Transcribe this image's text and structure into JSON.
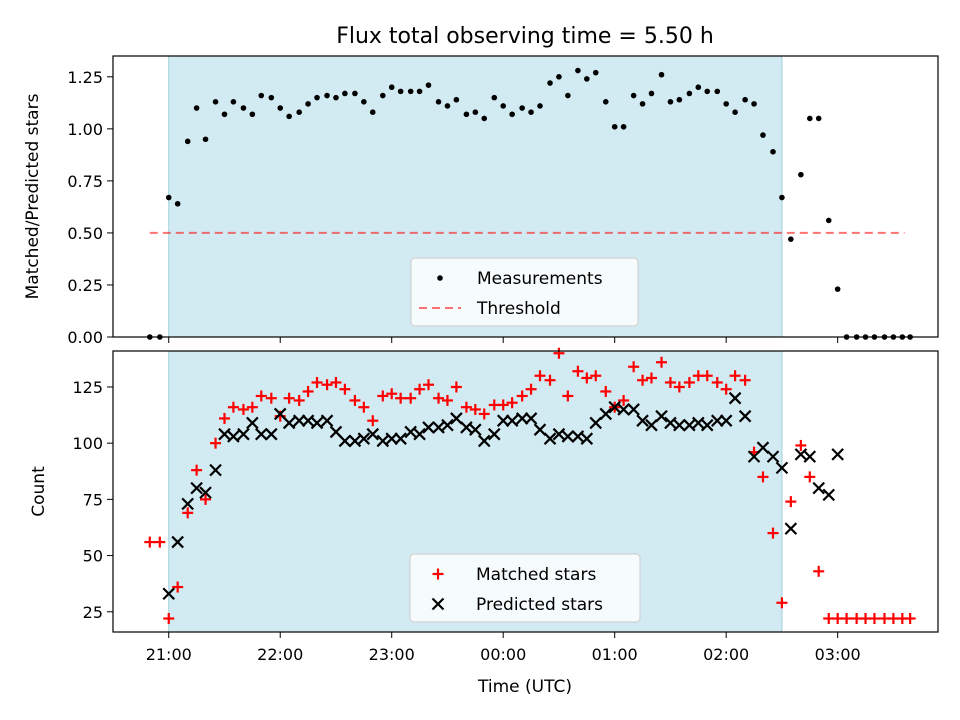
{
  "title": "Flux total observing time = 5.50 h",
  "colors": {
    "observing_span": "#add8e6",
    "measurement": "#000000",
    "threshold": "#ff0000",
    "matched": "#ff0000",
    "predicted": "#000000"
  },
  "chart_data": [
    {
      "type": "scatter",
      "ylabel": "Matched/Predicted stars",
      "xlabel": "",
      "xlim": [
        -0.5,
        6.9
      ],
      "ylim": [
        0.0,
        1.35
      ],
      "yticks": [
        0.0,
        0.25,
        0.5,
        0.75,
        1.0,
        1.25
      ],
      "ytick_labels": [
        "0.00",
        "0.25",
        "0.50",
        "0.75",
        "1.00",
        "1.25"
      ],
      "observing_span": [
        0.0,
        5.5
      ],
      "legend": {
        "placement": "lower-center",
        "entries": [
          "Measurements",
          "Threshold"
        ]
      },
      "threshold": {
        "name": "Threshold",
        "value": 0.5,
        "x_range": [
          -0.17,
          6.6
        ]
      },
      "series": [
        {
          "name": "Measurements",
          "x": [
            -0.17,
            -0.08,
            0.0,
            0.08,
            0.17,
            0.25,
            0.33,
            0.42,
            0.5,
            0.58,
            0.67,
            0.75,
            0.83,
            0.92,
            1.0,
            1.08,
            1.17,
            1.25,
            1.33,
            1.42,
            1.5,
            1.58,
            1.67,
            1.75,
            1.83,
            1.92,
            2.0,
            2.08,
            2.17,
            2.25,
            2.33,
            2.42,
            2.5,
            2.58,
            2.67,
            2.75,
            2.83,
            2.92,
            3.0,
            3.08,
            3.17,
            3.25,
            3.33,
            3.42,
            3.5,
            3.58,
            3.67,
            3.75,
            3.83,
            3.92,
            4.0,
            4.08,
            4.17,
            4.25,
            4.33,
            4.42,
            4.5,
            4.58,
            4.67,
            4.75,
            4.83,
            4.92,
            5.0,
            5.08,
            5.17,
            5.25,
            5.33,
            5.42,
            5.5,
            5.58,
            5.67,
            5.75,
            5.83,
            5.92,
            6.0,
            6.08,
            6.17,
            6.25,
            6.33,
            6.42,
            6.5,
            6.58,
            6.65
          ],
          "y": [
            0.0,
            0.0,
            0.67,
            0.64,
            0.94,
            1.1,
            0.95,
            1.13,
            1.07,
            1.13,
            1.1,
            1.07,
            1.16,
            1.15,
            1.1,
            1.06,
            1.08,
            1.12,
            1.15,
            1.16,
            1.15,
            1.17,
            1.17,
            1.13,
            1.08,
            1.16,
            1.2,
            1.18,
            1.18,
            1.18,
            1.21,
            1.13,
            1.11,
            1.14,
            1.07,
            1.08,
            1.05,
            1.15,
            1.11,
            1.07,
            1.1,
            1.08,
            1.11,
            1.22,
            1.25,
            1.16,
            1.28,
            1.24,
            1.27,
            1.13,
            1.01,
            1.01,
            1.16,
            1.12,
            1.17,
            1.26,
            1.13,
            1.14,
            1.17,
            1.2,
            1.18,
            1.18,
            1.12,
            1.08,
            1.14,
            1.12,
            0.97,
            0.89,
            0.67,
            0.47,
            0.78,
            1.05,
            1.05,
            0.56,
            0.23,
            0.0,
            0.0,
            0.0,
            0.0,
            0.0,
            0.0,
            0.0,
            0.0
          ]
        }
      ]
    },
    {
      "type": "scatter",
      "ylabel": "Count",
      "xlabel": "Time (UTC)",
      "xlim": [
        -0.5,
        6.9
      ],
      "ylim": [
        16,
        141
      ],
      "yticks": [
        25,
        50,
        75,
        100,
        125
      ],
      "ytick_labels": [
        "25",
        "50",
        "75",
        "100",
        "125"
      ],
      "xticks": [
        0,
        1,
        2,
        3,
        4,
        5,
        6
      ],
      "xtick_labels": [
        "21:00",
        "22:00",
        "23:00",
        "00:00",
        "01:00",
        "02:00",
        "03:00"
      ],
      "observing_span": [
        0.0,
        5.5
      ],
      "legend": {
        "placement": "lower-center",
        "entries": [
          "Matched stars",
          "Predicted stars"
        ]
      },
      "series": [
        {
          "name": "Matched stars",
          "marker": "plus",
          "x": [
            -0.17,
            -0.08,
            0.0,
            0.08,
            0.17,
            0.25,
            0.33,
            0.42,
            0.5,
            0.58,
            0.67,
            0.75,
            0.83,
            0.92,
            1.0,
            1.08,
            1.17,
            1.25,
            1.33,
            1.42,
            1.5,
            1.58,
            1.67,
            1.75,
            1.83,
            1.92,
            2.0,
            2.08,
            2.17,
            2.25,
            2.33,
            2.42,
            2.5,
            2.58,
            2.67,
            2.75,
            2.83,
            2.92,
            3.0,
            3.08,
            3.17,
            3.25,
            3.33,
            3.42,
            3.5,
            3.58,
            3.67,
            3.75,
            3.83,
            3.92,
            4.0,
            4.08,
            4.17,
            4.25,
            4.33,
            4.42,
            4.5,
            4.58,
            4.67,
            4.75,
            4.83,
            4.92,
            5.0,
            5.08,
            5.17,
            5.25,
            5.33,
            5.42,
            5.5,
            5.58,
            5.67,
            5.75,
            5.83,
            5.92,
            6.0,
            6.08,
            6.17,
            6.25,
            6.33,
            6.42,
            6.5,
            6.58,
            6.65
          ],
          "y": [
            56,
            56,
            22,
            36,
            69,
            88,
            75,
            100,
            111,
            116,
            115,
            116,
            121,
            120,
            112,
            120,
            119,
            123,
            127,
            126,
            127,
            124,
            119,
            116,
            110,
            121,
            122,
            120,
            120,
            124,
            126,
            120,
            119,
            125,
            116,
            115,
            113,
            117,
            117,
            118,
            121,
            124,
            130,
            128,
            140,
            121,
            132,
            129,
            130,
            123,
            116,
            119,
            134,
            128,
            129,
            136,
            127,
            125,
            127,
            130,
            130,
            127,
            124,
            130,
            128,
            96,
            85,
            60,
            29,
            74,
            99,
            85,
            43,
            22,
            22,
            22,
            22,
            22,
            22,
            22,
            22,
            22,
            22
          ]
        },
        {
          "name": "Predicted stars",
          "marker": "x",
          "x": [
            0.0,
            0.08,
            0.17,
            0.25,
            0.33,
            0.42,
            0.5,
            0.58,
            0.67,
            0.75,
            0.83,
            0.92,
            1.0,
            1.08,
            1.17,
            1.25,
            1.33,
            1.42,
            1.5,
            1.58,
            1.67,
            1.75,
            1.83,
            1.92,
            2.0,
            2.08,
            2.17,
            2.25,
            2.33,
            2.42,
            2.5,
            2.58,
            2.67,
            2.75,
            2.83,
            2.92,
            3.0,
            3.08,
            3.17,
            3.25,
            3.33,
            3.42,
            3.5,
            3.58,
            3.67,
            3.75,
            3.83,
            3.92,
            4.0,
            4.08,
            4.17,
            4.25,
            4.33,
            4.42,
            4.5,
            4.58,
            4.67,
            4.75,
            4.83,
            4.92,
            5.0,
            5.08,
            5.17,
            5.25,
            5.33,
            5.42,
            5.5,
            5.58,
            5.67,
            5.75,
            5.83,
            5.92,
            6.0
          ],
          "y": [
            33,
            56,
            73,
            80,
            78,
            88,
            104,
            103,
            104,
            109,
            104,
            104,
            113,
            109,
            110,
            110,
            109,
            110,
            105,
            101,
            101,
            102,
            104,
            101,
            102,
            102,
            105,
            104,
            107,
            107,
            108,
            111,
            107,
            106,
            101,
            104,
            110,
            110,
            111,
            111,
            106,
            102,
            104,
            103,
            103,
            102,
            109,
            113,
            116,
            115,
            115,
            110,
            108,
            112,
            109,
            108,
            108,
            109,
            108,
            110,
            110,
            120,
            112,
            94,
            98,
            94,
            89,
            62,
            95,
            94,
            80,
            77,
            95
          ]
        }
      ]
    }
  ]
}
